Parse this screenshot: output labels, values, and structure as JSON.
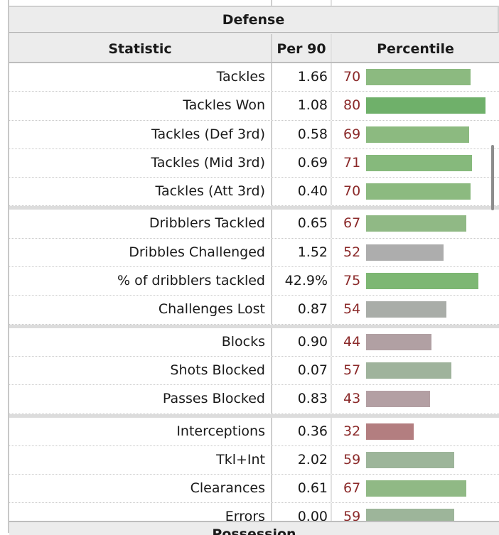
{
  "section_title": "Defense",
  "next_section_title": "Possession",
  "columns": {
    "statistic": "Statistic",
    "per90": "Per 90",
    "percentile": "Percentile"
  },
  "groups": [
    {
      "rows": [
        {
          "stat": "Tackles",
          "per90": "1.66",
          "percentile": "70",
          "bar_color": "#8cba80"
        },
        {
          "stat": "Tackles Won",
          "per90": "1.08",
          "percentile": "80",
          "bar_color": "#6fb06a"
        },
        {
          "stat": "Tackles (Def 3rd)",
          "per90": "0.58",
          "percentile": "69",
          "bar_color": "#8cba80"
        },
        {
          "stat": "Tackles (Mid 3rd)",
          "per90": "0.69",
          "percentile": "71",
          "bar_color": "#86b97c"
        },
        {
          "stat": "Tackles (Att 3rd)",
          "per90": "0.40",
          "percentile": "70",
          "bar_color": "#8cba80"
        }
      ]
    },
    {
      "rows": [
        {
          "stat": "Dribblers Tackled",
          "per90": "0.65",
          "percentile": "67",
          "bar_color": "#90b985"
        },
        {
          "stat": "Dribbles Challenged",
          "per90": "1.52",
          "percentile": "52",
          "bar_color": "#adadad"
        },
        {
          "stat": "% of dribblers tackled",
          "per90": "42.9%",
          "percentile": "75",
          "bar_color": "#7db773"
        },
        {
          "stat": "Challenges Lost",
          "per90": "0.87",
          "percentile": "54",
          "bar_color": "#a9ada8"
        }
      ]
    },
    {
      "rows": [
        {
          "stat": "Blocks",
          "per90": "0.90",
          "percentile": "44",
          "bar_color": "#b1a0a3"
        },
        {
          "stat": "Shots Blocked",
          "per90": "0.07",
          "percentile": "57",
          "bar_color": "#9fb39c"
        },
        {
          "stat": "Passes Blocked",
          "per90": "0.83",
          "percentile": "43",
          "bar_color": "#b39fa3"
        }
      ]
    },
    {
      "rows": [
        {
          "stat": "Interceptions",
          "per90": "0.36",
          "percentile": "32",
          "bar_color": "#b37e80"
        },
        {
          "stat": "Tkl+Int",
          "per90": "2.02",
          "percentile": "59",
          "bar_color": "#9db59a"
        },
        {
          "stat": "Clearances",
          "per90": "0.61",
          "percentile": "67",
          "bar_color": "#90b985"
        },
        {
          "stat": "Errors",
          "per90": "0.00",
          "percentile": "59",
          "bar_color": "#9db59a"
        }
      ]
    }
  ]
}
